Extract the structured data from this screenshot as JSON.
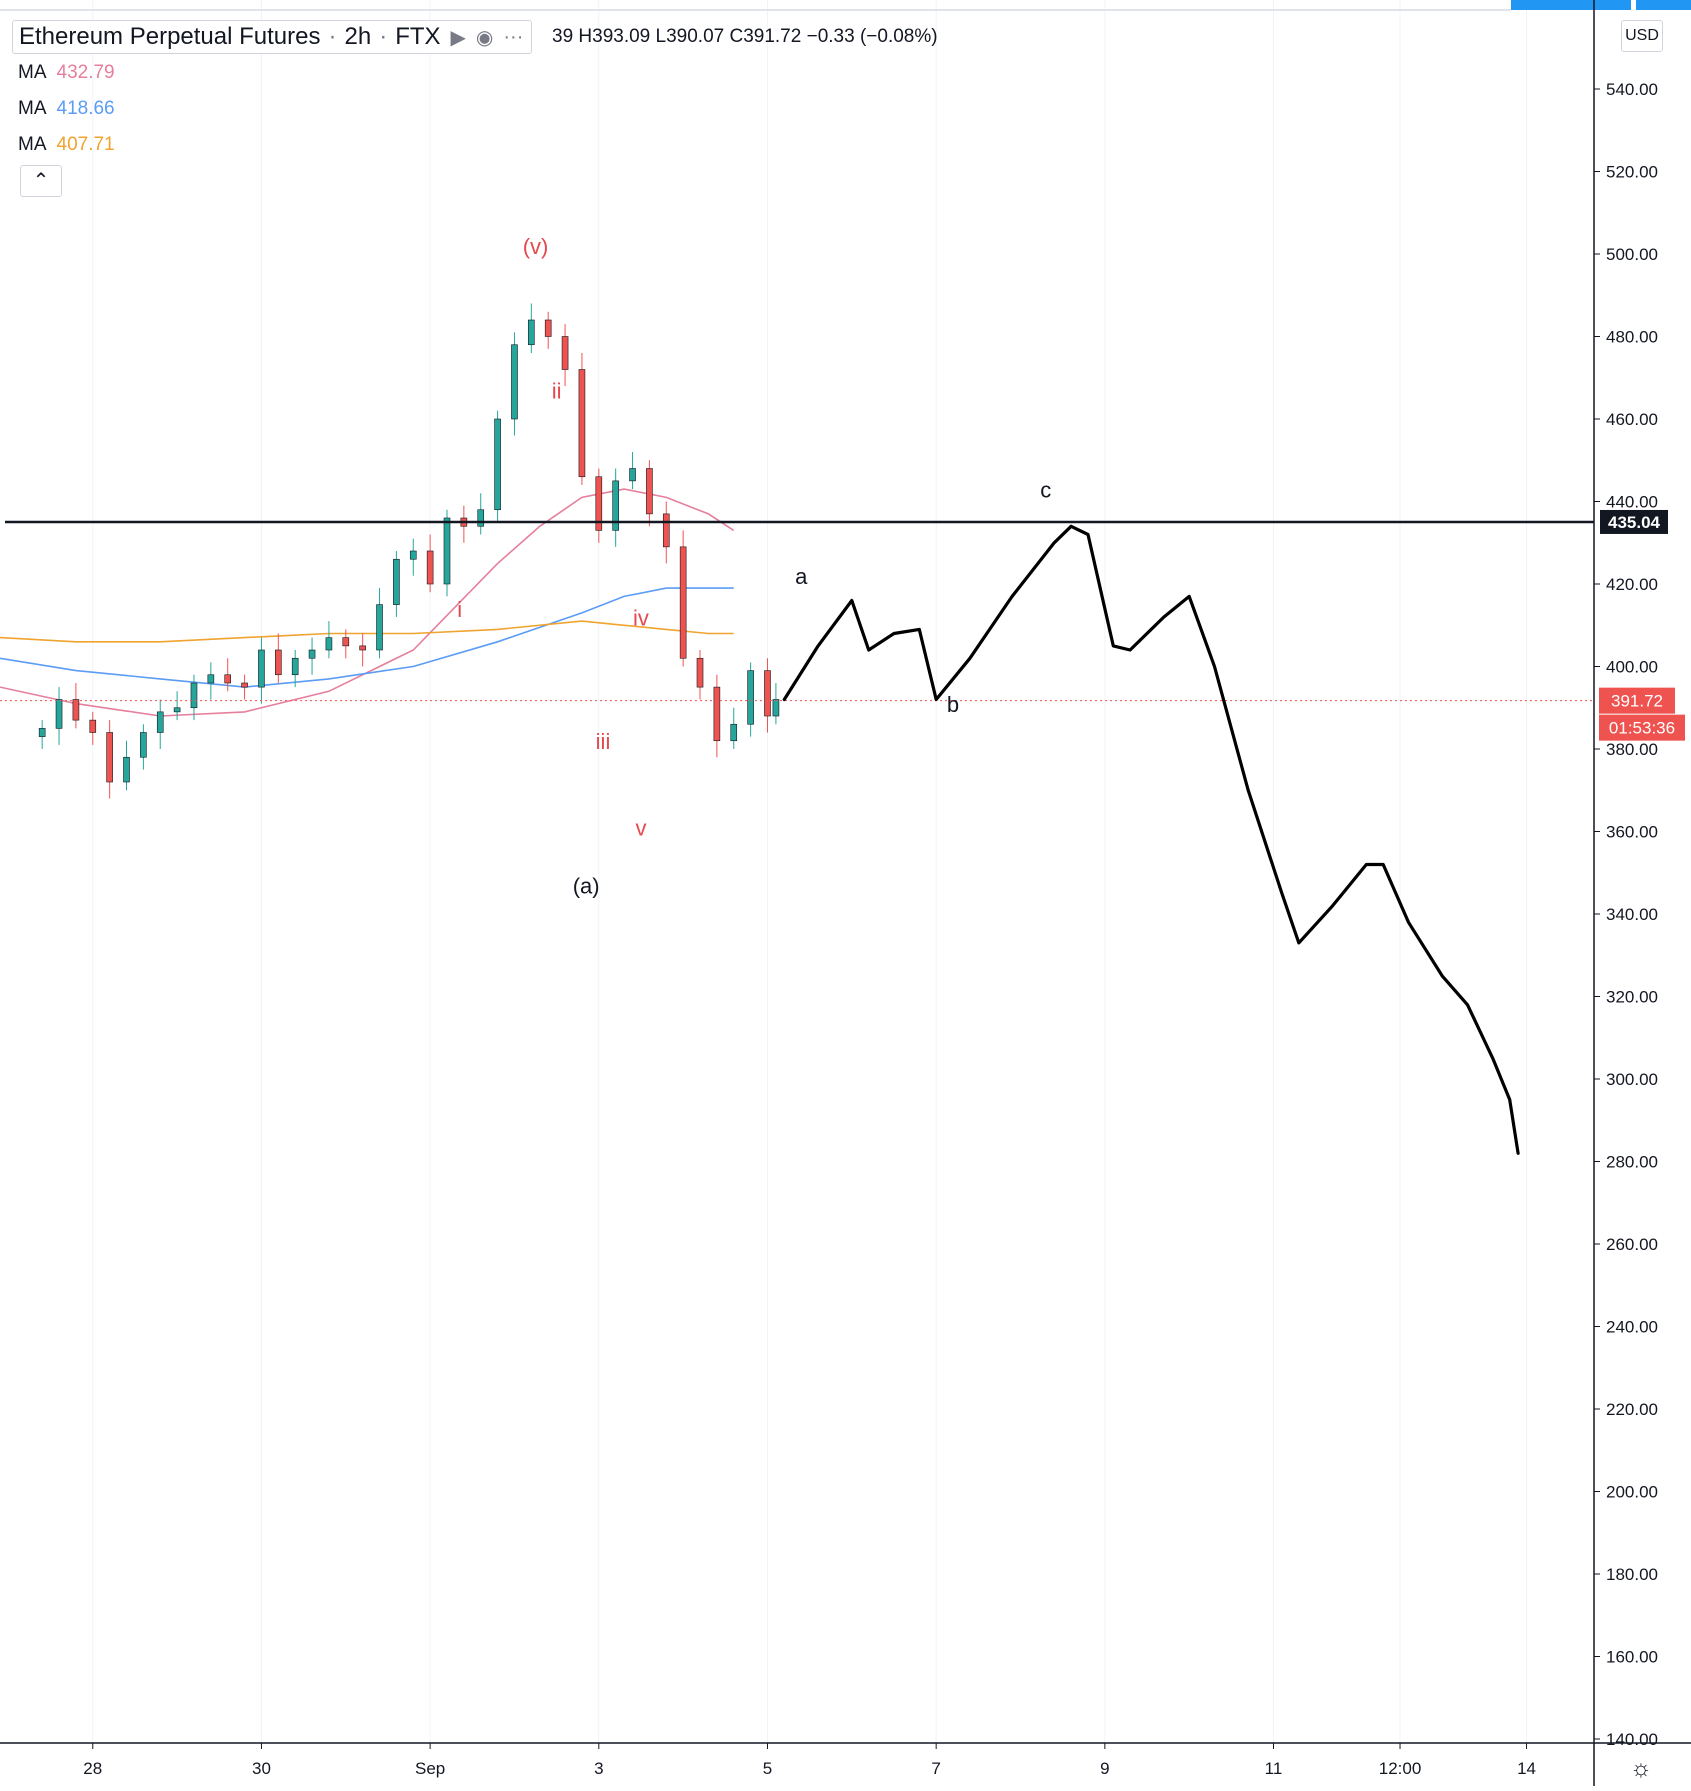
{
  "header": {
    "symbol": "Ethereum Perpetual Futures",
    "interval": "2h",
    "exchange": "FTX",
    "ohlc_text": "39 H393.09 L390.07 C391.72 −0.33 (−0.08%)"
  },
  "indicators": [
    {
      "label": "MA",
      "value": "432.79",
      "color": "#e57f9c"
    },
    {
      "label": "MA",
      "value": "418.66",
      "color": "#5b9cf6"
    },
    {
      "label": "MA",
      "value": "407.71",
      "color": "#f0a32f"
    }
  ],
  "price_axis": {
    "currency": "USD",
    "current_price": "391.72",
    "countdown": "01:53:36",
    "hline_label": "435.04"
  },
  "chart_data": {
    "type": "candlestick",
    "y_range": [
      140,
      560
    ],
    "y_ticks": [
      "540.00",
      "520.00",
      "500.00",
      "480.00",
      "460.00",
      "440.00",
      "420.00",
      "400.00",
      "380.00",
      "360.00",
      "340.00",
      "320.00",
      "300.00",
      "280.00",
      "260.00",
      "240.00",
      "220.00",
      "200.00",
      "180.00",
      "160.00",
      "140.00"
    ],
    "x_ticks": [
      {
        "label": "28",
        "day": 27.7
      },
      {
        "label": "30",
        "day": 29.7
      },
      {
        "label": "Sep",
        "day": 31.7
      },
      {
        "label": "3",
        "day": 33.7
      },
      {
        "label": "5",
        "day": 35.7
      },
      {
        "label": "7",
        "day": 37.7
      },
      {
        "label": "9",
        "day": 39.7
      },
      {
        "label": "11",
        "day": 41.7
      },
      {
        "label": "12:00",
        "day": 43.2
      },
      {
        "label": "14",
        "day": 44.7
      }
    ],
    "x_range_days": [
      26.6,
      45.5
    ],
    "ohlc_points": [
      [
        27.1,
        385
      ],
      [
        27.3,
        392
      ],
      [
        27.5,
        387
      ],
      [
        27.7,
        384
      ],
      [
        27.9,
        372
      ],
      [
        28.1,
        378
      ],
      [
        28.3,
        384
      ],
      [
        28.5,
        389
      ],
      [
        28.7,
        390
      ],
      [
        28.9,
        396
      ],
      [
        29.1,
        398
      ],
      [
        29.3,
        396
      ],
      [
        29.5,
        395
      ],
      [
        29.7,
        404
      ],
      [
        29.9,
        398
      ],
      [
        30.1,
        402
      ],
      [
        30.3,
        404
      ],
      [
        30.5,
        407
      ],
      [
        30.7,
        405
      ],
      [
        30.9,
        404
      ],
      [
        31.1,
        415
      ],
      [
        31.3,
        426
      ],
      [
        31.5,
        428
      ],
      [
        31.7,
        420
      ],
      [
        31.9,
        436
      ],
      [
        32.1,
        434
      ],
      [
        32.3,
        438
      ],
      [
        32.5,
        460
      ],
      [
        32.7,
        478
      ],
      [
        32.9,
        484
      ],
      [
        33.1,
        480
      ],
      [
        33.3,
        472
      ],
      [
        33.5,
        446
      ],
      [
        33.7,
        433
      ],
      [
        33.9,
        445
      ],
      [
        34.1,
        448
      ],
      [
        34.3,
        437
      ],
      [
        34.5,
        429
      ],
      [
        34.7,
        402
      ],
      [
        34.9,
        395
      ],
      [
        35.1,
        382
      ],
      [
        35.3,
        386
      ],
      [
        35.5,
        399
      ],
      [
        35.7,
        388
      ],
      [
        35.8,
        392
      ]
    ],
    "ohlc_note": "approximate closes; candles are drawn around these",
    "series": [
      {
        "name": "MA",
        "color": "#e57f9c",
        "points": [
          [
            26.6,
            395
          ],
          [
            27.5,
            391
          ],
          [
            28.5,
            388
          ],
          [
            29.5,
            389
          ],
          [
            30.5,
            394
          ],
          [
            31.5,
            404
          ],
          [
            32.5,
            425
          ],
          [
            33.0,
            434
          ],
          [
            33.5,
            441
          ],
          [
            34.0,
            443
          ],
          [
            34.5,
            441
          ],
          [
            35.0,
            437
          ],
          [
            35.3,
            433
          ]
        ]
      },
      {
        "name": "MA",
        "color": "#5b9cf6",
        "points": [
          [
            26.6,
            402
          ],
          [
            27.5,
            399
          ],
          [
            28.5,
            397
          ],
          [
            29.5,
            395
          ],
          [
            30.5,
            397
          ],
          [
            31.5,
            400
          ],
          [
            32.5,
            406
          ],
          [
            33.5,
            413
          ],
          [
            34.0,
            417
          ],
          [
            34.5,
            419
          ],
          [
            35.0,
            419
          ],
          [
            35.3,
            419
          ]
        ]
      },
      {
        "name": "MA",
        "color": "#f0a32f",
        "points": [
          [
            26.6,
            407
          ],
          [
            27.5,
            406
          ],
          [
            28.5,
            406
          ],
          [
            29.5,
            407
          ],
          [
            30.5,
            408
          ],
          [
            31.5,
            408
          ],
          [
            32.5,
            409
          ],
          [
            33.5,
            411
          ],
          [
            34.0,
            410
          ],
          [
            34.5,
            409
          ],
          [
            35.0,
            408
          ],
          [
            35.3,
            408
          ]
        ]
      }
    ],
    "horizontal_lines": [
      {
        "value": 435.04,
        "color": "#131722"
      }
    ],
    "current_price_line": {
      "value": 391.72,
      "color": "#ef5350"
    },
    "forecast_path": [
      [
        35.9,
        392
      ],
      [
        36.3,
        405
      ],
      [
        36.7,
        416
      ],
      [
        36.9,
        404
      ],
      [
        37.2,
        408
      ],
      [
        37.5,
        409
      ],
      [
        37.7,
        392
      ],
      [
        38.1,
        402
      ],
      [
        38.6,
        417
      ],
      [
        39.1,
        430
      ],
      [
        39.3,
        434
      ],
      [
        39.5,
        432
      ],
      [
        39.8,
        405
      ],
      [
        40.0,
        404
      ],
      [
        40.4,
        412
      ],
      [
        40.7,
        417
      ],
      [
        41.0,
        400
      ],
      [
        41.4,
        370
      ],
      [
        41.8,
        345
      ],
      [
        42.0,
        333
      ],
      [
        42.4,
        342
      ],
      [
        42.8,
        352
      ],
      [
        43.0,
        352
      ],
      [
        43.3,
        338
      ],
      [
        43.7,
        325
      ],
      [
        44.0,
        318
      ],
      [
        44.3,
        305
      ],
      [
        44.5,
        295
      ],
      [
        44.6,
        282
      ]
    ],
    "wave_labels": [
      {
        "text": "(v)",
        "day": 32.95,
        "price": 500,
        "color": "#e5484d"
      },
      {
        "text": "ii",
        "day": 33.2,
        "price": 465,
        "color": "#e5484d"
      },
      {
        "text": "i",
        "day": 32.05,
        "price": 412,
        "color": "#e5484d"
      },
      {
        "text": "iv",
        "day": 34.2,
        "price": 410,
        "color": "#e5484d"
      },
      {
        "text": "iii",
        "day": 33.75,
        "price": 380,
        "color": "#e5484d"
      },
      {
        "text": "v",
        "day": 34.2,
        "price": 359,
        "color": "#e5484d"
      },
      {
        "text": "(a)",
        "day": 33.55,
        "price": 345,
        "color": "#131722"
      },
      {
        "text": "a",
        "day": 36.1,
        "price": 420,
        "color": "#131722"
      },
      {
        "text": "b",
        "day": 37.9,
        "price": 389,
        "color": "#131722"
      },
      {
        "text": "c",
        "day": 39.0,
        "price": 441,
        "color": "#131722"
      }
    ]
  }
}
